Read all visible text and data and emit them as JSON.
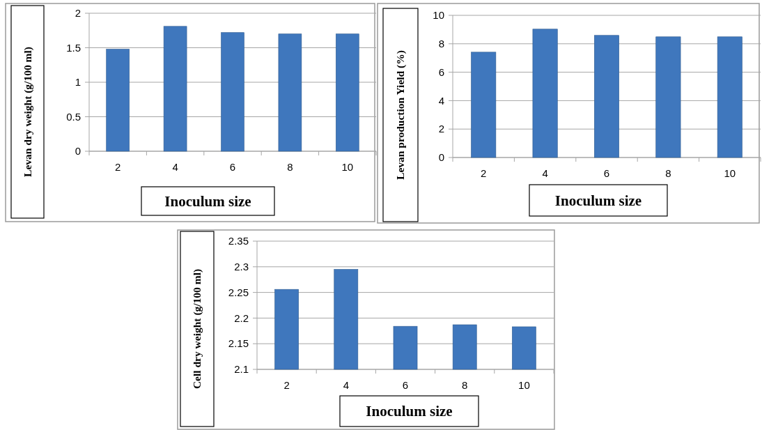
{
  "chart_data": [
    {
      "type": "bar",
      "categories": [
        "2",
        "4",
        "6",
        "8",
        "10"
      ],
      "values": [
        1.48,
        1.81,
        1.72,
        1.7,
        1.7
      ],
      "color": "#3f77bd",
      "xlabel": "Inoculum size",
      "ylabel": "Levan dry weight (g/100 ml)",
      "ylim": [
        0,
        2
      ],
      "yticks": [
        0,
        0.5,
        1,
        1.5,
        2
      ],
      "grid": "y"
    },
    {
      "type": "bar",
      "categories": [
        "2",
        "4",
        "6",
        "8",
        "10"
      ],
      "values": [
        7.41,
        9.03,
        8.59,
        8.49,
        8.49
      ],
      "color": "#3f77bd",
      "xlabel": "Inoculum size",
      "ylabel": "Levan production  Yield (%)",
      "ylim": [
        0,
        10
      ],
      "yticks": [
        0,
        2,
        4,
        6,
        8,
        10
      ],
      "grid": "y"
    },
    {
      "type": "bar",
      "categories": [
        "2",
        "4",
        "6",
        "8",
        "10"
      ],
      "values": [
        2.256,
        2.295,
        2.184,
        2.187,
        2.183
      ],
      "color": "#3f77bd",
      "xlabel": "Inoculum size",
      "ylabel": "Cell dry weight (g/100 ml)",
      "ylim": [
        2.1,
        2.35
      ],
      "yticks": [
        2.1,
        2.15,
        2.2,
        2.25,
        2.3,
        2.35
      ],
      "grid": "y"
    }
  ]
}
